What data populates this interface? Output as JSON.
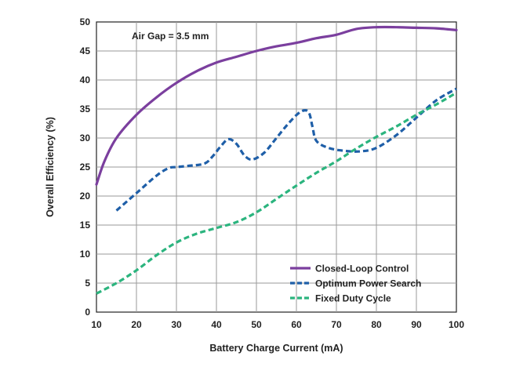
{
  "chart_data": {
    "type": "line",
    "xlabel": "Battery Charge Current (mA)",
    "ylabel": "Overall Efficiency (%)",
    "xlim": [
      10,
      100
    ],
    "ylim": [
      0,
      50
    ],
    "xticks": [
      10,
      20,
      30,
      40,
      50,
      60,
      70,
      80,
      90,
      100
    ],
    "yticks": [
      0,
      5,
      10,
      15,
      20,
      25,
      30,
      35,
      40,
      45,
      50
    ],
    "grid": true,
    "legend_position": "bottom-right",
    "annotation": "Air Gap = 3.5 mm",
    "series": [
      {
        "name": "Closed-Loop Control",
        "color": "#7b3f9e",
        "style": "solid",
        "x": [
          10,
          12,
          15,
          20,
          25,
          30,
          35,
          40,
          45,
          50,
          55,
          60,
          65,
          70,
          75,
          80,
          85,
          90,
          95,
          100
        ],
        "y": [
          22,
          26,
          30,
          34,
          37,
          39.5,
          41.5,
          43,
          44,
          45,
          45.8,
          46.4,
          47.2,
          47.8,
          48.8,
          49.1,
          49.1,
          49.0,
          48.9,
          48.6
        ]
      },
      {
        "name": "Optimum Power Search",
        "color": "#1f5fa8",
        "style": "dashed",
        "x": [
          15,
          20,
          25,
          28,
          30,
          33,
          37,
          39,
          41,
          43,
          45,
          47,
          49,
          52,
          55,
          58,
          61,
          63,
          64,
          65,
          68,
          72,
          76,
          80,
          85,
          90,
          95,
          100
        ],
        "y": [
          17.5,
          20.5,
          23.5,
          24.8,
          25.0,
          25.2,
          25.6,
          26.8,
          28.5,
          29.8,
          29.0,
          27.0,
          26.3,
          27.5,
          30.0,
          32.5,
          34.5,
          34.5,
          32.0,
          29.5,
          28.3,
          27.8,
          27.7,
          28.3,
          30.5,
          33.5,
          36.5,
          38.5
        ]
      },
      {
        "name": "Fixed Duty Cycle",
        "color": "#2bb47e",
        "style": "dashed",
        "x": [
          10,
          15,
          20,
          25,
          30,
          35,
          40,
          45,
          50,
          55,
          60,
          65,
          70,
          75,
          80,
          85,
          90,
          95,
          100
        ],
        "y": [
          3.2,
          5.0,
          7.2,
          9.8,
          12.0,
          13.5,
          14.5,
          15.5,
          17.2,
          19.5,
          21.8,
          24.0,
          26.0,
          28.2,
          30.2,
          32.0,
          34.0,
          35.8,
          37.8
        ]
      }
    ]
  }
}
